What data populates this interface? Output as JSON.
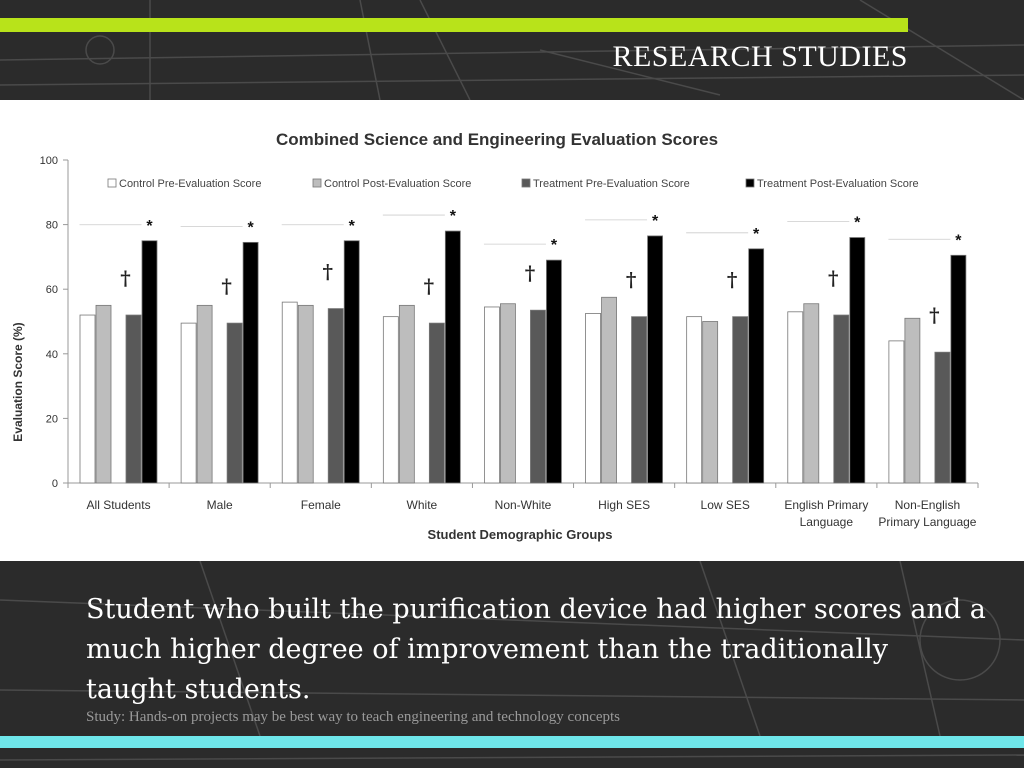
{
  "slide": {
    "title": "RESEARCH STUDIES",
    "caption": "Student who built the purification device had higher scores and a much higher degree of improvement than the traditionally taught students.",
    "source": "Study: Hands-on projects may be best way to teach engineering and technology concepts",
    "colors": {
      "accent_top": "#b8e31a",
      "accent_bottom": "#6fe6ea",
      "background": "#2b2b2b"
    }
  },
  "chart_data": {
    "type": "bar",
    "title": "Combined Science and Engineering Evaluation Scores",
    "xlabel": "Student Demographic Groups",
    "ylabel": "Evaluation Score (%)",
    "ylim": [
      0,
      100
    ],
    "yticks": [
      0,
      20,
      40,
      60,
      80,
      100
    ],
    "legend_position": "top",
    "grid": false,
    "categories": [
      [
        "All Students"
      ],
      [
        "Male"
      ],
      [
        "Female"
      ],
      [
        "White"
      ],
      [
        "Non-White"
      ],
      [
        "High SES"
      ],
      [
        "Low SES"
      ],
      [
        "English Primary",
        "Language"
      ],
      [
        "Non-English",
        "Primary Language"
      ]
    ],
    "series": [
      {
        "name": "Control Pre-Evaluation Score",
        "color": "#ffffff",
        "values": [
          52,
          49.5,
          56,
          51.5,
          54.5,
          52.5,
          51.5,
          53,
          44
        ]
      },
      {
        "name": "Control Post-Evaluation Score",
        "color": "#bdbdbd",
        "values": [
          55,
          55,
          55,
          55,
          55.5,
          57.5,
          50,
          55.5,
          51
        ]
      },
      {
        "name": "Treatment Pre-Evaluation Score",
        "color": "#595959",
        "values": [
          52,
          49.5,
          54,
          49.5,
          53.5,
          51.5,
          51.5,
          52,
          40.5
        ]
      },
      {
        "name": "Treatment Post-Evaluation Score",
        "color": "#000000",
        "values": [
          75,
          74.5,
          75,
          78,
          69,
          76.5,
          72.5,
          76,
          70.5
        ]
      }
    ],
    "annotations": {
      "dagger": "†",
      "star": "*"
    }
  }
}
